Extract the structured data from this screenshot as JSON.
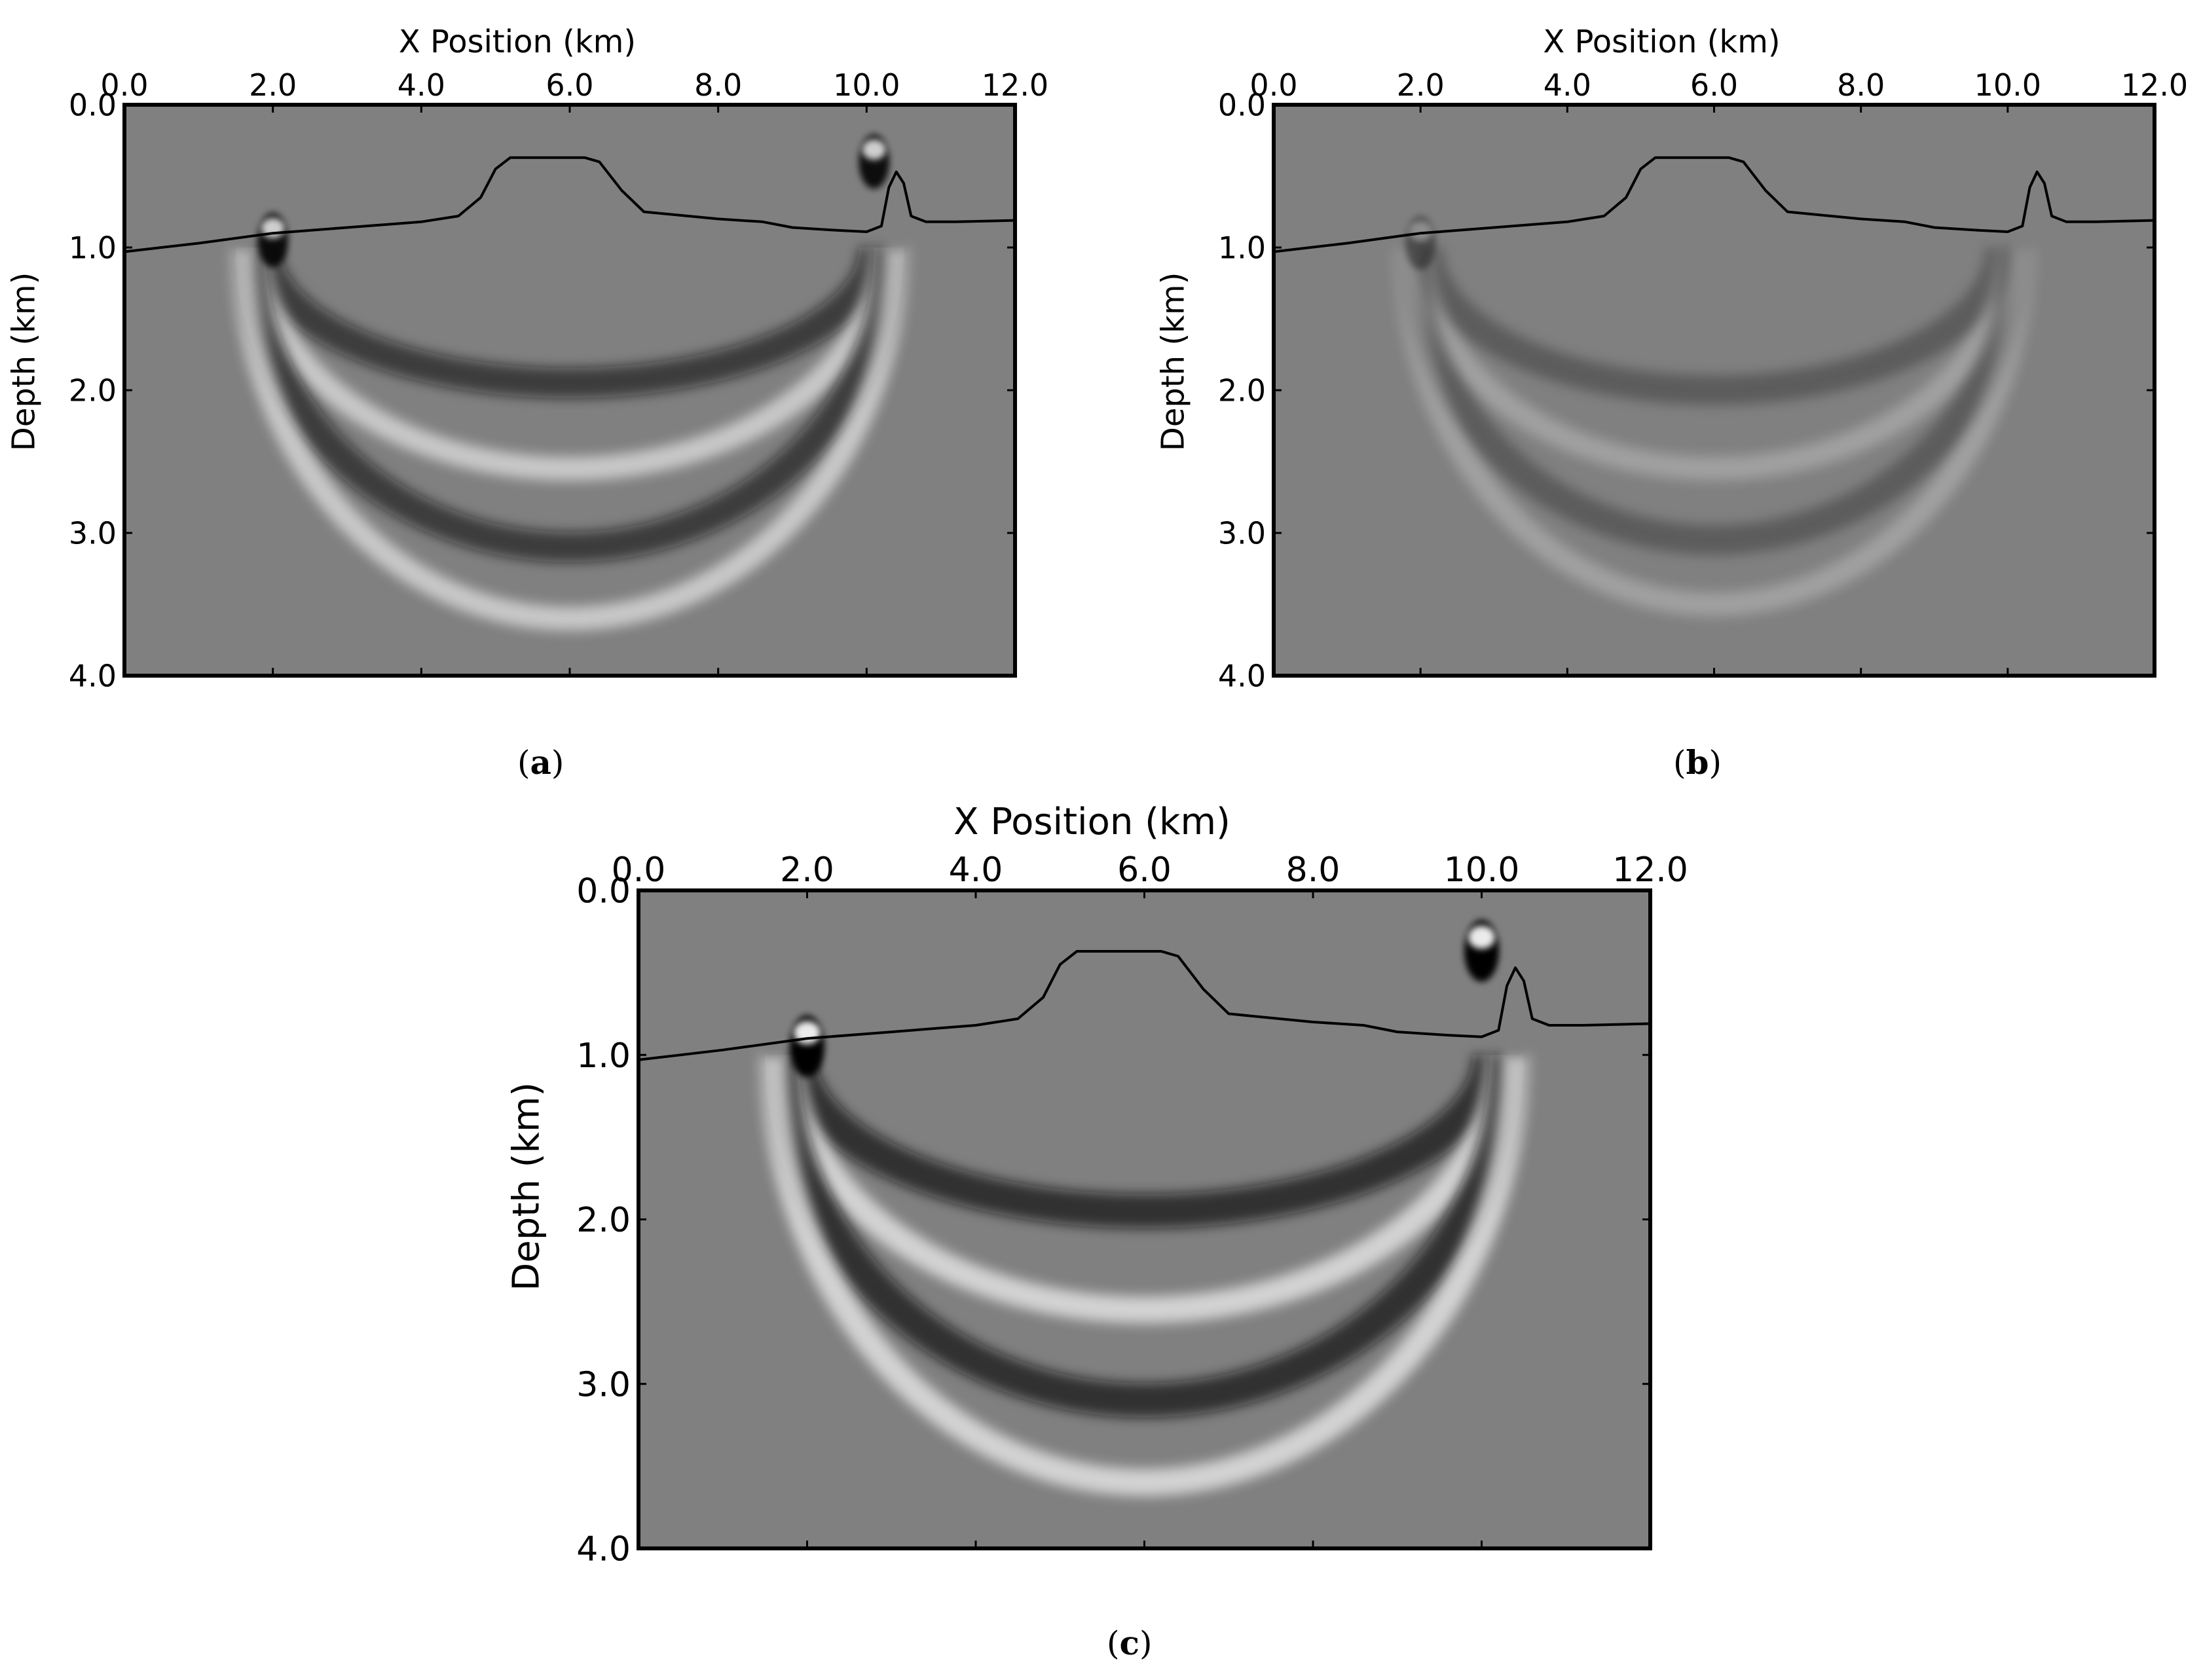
{
  "figure": {
    "panels": [
      {
        "id": "a",
        "caption_letter": "a"
      },
      {
        "id": "b",
        "caption_letter": "b"
      },
      {
        "id": "c",
        "caption_letter": "c"
      }
    ]
  },
  "chart_data": [
    {
      "type": "heatmap",
      "panel": "a",
      "xlabel": "X Position (km)",
      "ylabel": "Depth (km)",
      "xlim": [
        0.0,
        12.0
      ],
      "ylim": [
        0.0,
        4.0
      ],
      "y_inverted": true,
      "x_axis_position": "top",
      "xticks": [
        "0.0",
        "2.0",
        "4.0",
        "6.0",
        "8.0",
        "10.0",
        "12.0"
      ],
      "yticks": [
        "0.0",
        "1.0",
        "2.0",
        "3.0",
        "4.0"
      ],
      "colormap": "gray",
      "amplitude_strength": 1.0,
      "curve_color": "#000000",
      "background_color": "#808080",
      "interface_curve": {
        "x": [
          0.0,
          1.0,
          2.0,
          3.0,
          4.0,
          4.5,
          4.8,
          5.0,
          5.2,
          6.2,
          6.4,
          6.7,
          7.0,
          8.0,
          8.6,
          9.0,
          9.6,
          10.0,
          10.2,
          10.3,
          10.4,
          10.5,
          10.6,
          10.8,
          11.2,
          12.0
        ],
        "y": [
          1.03,
          0.97,
          0.9,
          0.86,
          0.82,
          0.78,
          0.65,
          0.45,
          0.37,
          0.37,
          0.4,
          0.6,
          0.75,
          0.8,
          0.82,
          0.86,
          0.88,
          0.89,
          0.85,
          0.58,
          0.47,
          0.55,
          0.78,
          0.82,
          0.82,
          0.81
        ]
      },
      "sources": [
        {
          "x": 2.0,
          "y": 0.9
        },
        {
          "x": 10.1,
          "y": 0.35
        }
      ],
      "wavefront_arcs": [
        {
          "center_x": 6.0,
          "center_y": 1.0,
          "rx": 4.1,
          "ry": 0.95,
          "shade": "dark"
        },
        {
          "center_x": 6.0,
          "center_y": 1.0,
          "rx": 4.2,
          "ry": 1.55,
          "shade": "light"
        },
        {
          "center_x": 6.0,
          "center_y": 1.0,
          "rx": 4.3,
          "ry": 2.1,
          "shade": "dark"
        },
        {
          "center_x": 6.0,
          "center_y": 1.0,
          "rx": 4.4,
          "ry": 2.6,
          "shade": "light"
        }
      ]
    },
    {
      "type": "heatmap",
      "panel": "b",
      "xlabel": "X Position (km)",
      "ylabel": "Depth (km)",
      "xlim": [
        0.0,
        12.0
      ],
      "ylim": [
        0.0,
        4.0
      ],
      "y_inverted": true,
      "x_axis_position": "top",
      "xticks": [
        "0.0",
        "2.0",
        "4.0",
        "6.0",
        "8.0",
        "10.0",
        "12.0"
      ],
      "yticks": [
        "0.0",
        "1.0",
        "2.0",
        "3.0",
        "4.0"
      ],
      "colormap": "gray",
      "amplitude_strength": 0.45,
      "curve_color": "#000000",
      "background_color": "#808080",
      "interface_curve": {
        "x": [
          0.0,
          1.0,
          2.0,
          3.0,
          4.0,
          4.5,
          4.8,
          5.0,
          5.2,
          6.2,
          6.4,
          6.7,
          7.0,
          8.0,
          8.6,
          9.0,
          9.6,
          10.0,
          10.2,
          10.3,
          10.4,
          10.5,
          10.6,
          10.8,
          11.2,
          12.0
        ],
        "y": [
          1.03,
          0.97,
          0.9,
          0.86,
          0.82,
          0.78,
          0.65,
          0.45,
          0.37,
          0.37,
          0.4,
          0.6,
          0.75,
          0.8,
          0.82,
          0.86,
          0.88,
          0.89,
          0.85,
          0.58,
          0.47,
          0.55,
          0.78,
          0.82,
          0.82,
          0.81
        ]
      },
      "sources": [
        {
          "x": 2.0,
          "y": 0.92
        }
      ],
      "wavefront_arcs": [
        {
          "center_x": 6.0,
          "center_y": 1.0,
          "rx": 3.9,
          "ry": 1.0,
          "shade": "dark"
        },
        {
          "center_x": 6.0,
          "center_y": 1.0,
          "rx": 4.0,
          "ry": 1.55,
          "shade": "light"
        },
        {
          "center_x": 6.0,
          "center_y": 1.0,
          "rx": 4.1,
          "ry": 2.05,
          "shade": "dark"
        },
        {
          "center_x": 6.0,
          "center_y": 1.0,
          "rx": 4.2,
          "ry": 2.5,
          "shade": "light"
        }
      ]
    },
    {
      "type": "heatmap",
      "panel": "c",
      "xlabel": "X Position (km)",
      "ylabel": "Depth (km)",
      "xlim": [
        0.0,
        12.0
      ],
      "ylim": [
        0.0,
        4.0
      ],
      "y_inverted": true,
      "x_axis_position": "top",
      "xticks": [
        "0.0",
        "2.0",
        "4.0",
        "6.0",
        "8.0",
        "10.0",
        "12.0"
      ],
      "yticks": [
        "0.0",
        "1.0",
        "2.0",
        "3.0",
        "4.0"
      ],
      "colormap": "gray",
      "amplitude_strength": 1.15,
      "curve_color": "#000000",
      "background_color": "#808080",
      "interface_curve": {
        "x": [
          0.0,
          1.0,
          2.0,
          3.0,
          4.0,
          4.5,
          4.8,
          5.0,
          5.2,
          6.2,
          6.4,
          6.7,
          7.0,
          8.0,
          8.6,
          9.0,
          9.6,
          10.0,
          10.2,
          10.3,
          10.4,
          10.5,
          10.6,
          10.8,
          11.2,
          12.0
        ],
        "y": [
          1.03,
          0.97,
          0.9,
          0.86,
          0.82,
          0.78,
          0.65,
          0.45,
          0.37,
          0.37,
          0.4,
          0.6,
          0.75,
          0.8,
          0.82,
          0.86,
          0.88,
          0.89,
          0.85,
          0.58,
          0.47,
          0.55,
          0.78,
          0.82,
          0.82,
          0.81
        ]
      },
      "sources": [
        {
          "x": 2.0,
          "y": 0.9
        },
        {
          "x": 10.0,
          "y": 0.32
        }
      ],
      "wavefront_arcs": [
        {
          "center_x": 6.0,
          "center_y": 1.0,
          "rx": 4.1,
          "ry": 0.95,
          "shade": "dark"
        },
        {
          "center_x": 6.0,
          "center_y": 1.0,
          "rx": 4.2,
          "ry": 1.55,
          "shade": "light"
        },
        {
          "center_x": 6.0,
          "center_y": 1.0,
          "rx": 4.3,
          "ry": 2.1,
          "shade": "dark"
        },
        {
          "center_x": 6.0,
          "center_y": 1.0,
          "rx": 4.4,
          "ry": 2.6,
          "shade": "light"
        }
      ]
    }
  ]
}
